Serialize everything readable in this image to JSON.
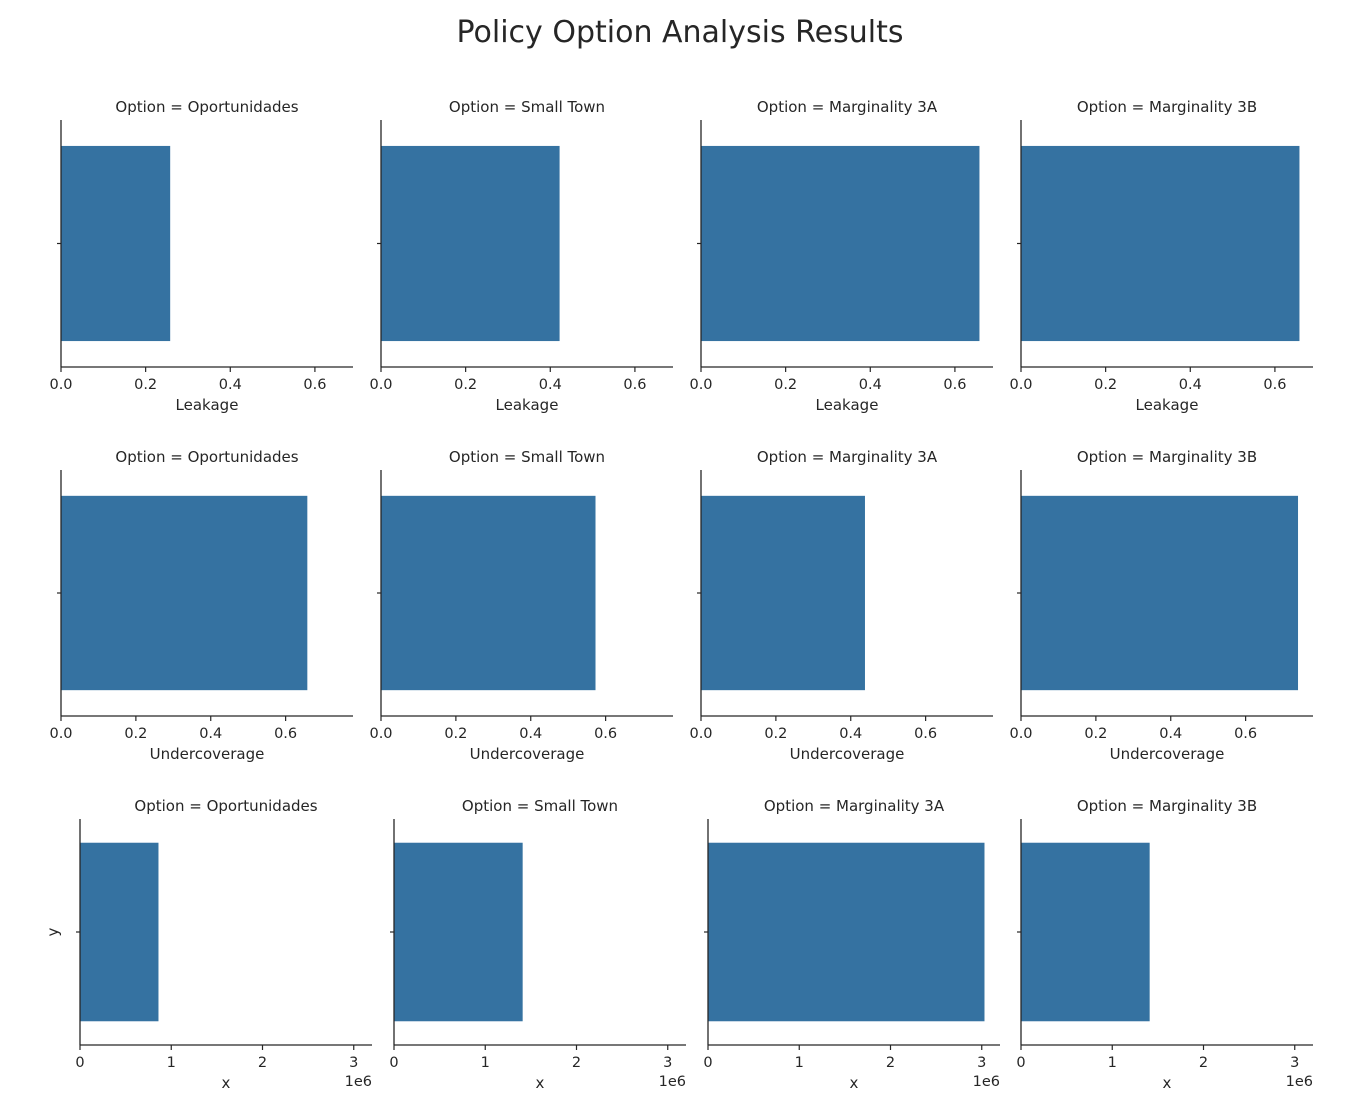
{
  "title": "Policy Option Analysis Results",
  "chart_data": [
    {
      "type": "bar",
      "orientation": "horizontal",
      "title": "Option = Oportunidades",
      "xlabel": "Leakage",
      "ylabel": "",
      "values": [
        0.258
      ],
      "xlim": [
        0,
        0.69
      ],
      "xticks": [
        "0.0",
        "0.2",
        "0.4",
        "0.6"
      ],
      "xtick_values": [
        0,
        0.2,
        0.4,
        0.6
      ],
      "offset_label": "",
      "color": "#3572a1"
    },
    {
      "type": "bar",
      "orientation": "horizontal",
      "title": "Option = Small Town",
      "xlabel": "Leakage",
      "ylabel": "",
      "values": [
        0.422
      ],
      "xlim": [
        0,
        0.69
      ],
      "xticks": [
        "0.0",
        "0.2",
        "0.4",
        "0.6"
      ],
      "xtick_values": [
        0,
        0.2,
        0.4,
        0.6
      ],
      "offset_label": "",
      "color": "#3572a1"
    },
    {
      "type": "bar",
      "orientation": "horizontal",
      "title": "Option = Marginality 3A",
      "xlabel": "Leakage",
      "ylabel": "",
      "values": [
        0.658
      ],
      "xlim": [
        0,
        0.69
      ],
      "xticks": [
        "0.0",
        "0.2",
        "0.4",
        "0.6"
      ],
      "xtick_values": [
        0,
        0.2,
        0.4,
        0.6
      ],
      "offset_label": "",
      "color": "#3572a1"
    },
    {
      "type": "bar",
      "orientation": "horizontal",
      "title": "Option = Marginality 3B",
      "xlabel": "Leakage",
      "ylabel": "",
      "values": [
        0.658
      ],
      "xlim": [
        0,
        0.69
      ],
      "xticks": [
        "0.0",
        "0.2",
        "0.4",
        "0.6"
      ],
      "xtick_values": [
        0,
        0.2,
        0.4,
        0.6
      ],
      "offset_label": "",
      "color": "#3572a1"
    },
    {
      "type": "bar",
      "orientation": "horizontal",
      "title": "Option = Oportunidades",
      "xlabel": "Undercoverage",
      "ylabel": "",
      "values": [
        0.658
      ],
      "xlim": [
        0,
        0.78
      ],
      "xticks": [
        "0.0",
        "0.2",
        "0.4",
        "0.6"
      ],
      "xtick_values": [
        0,
        0.2,
        0.4,
        0.6
      ],
      "offset_label": "",
      "color": "#3572a1"
    },
    {
      "type": "bar",
      "orientation": "horizontal",
      "title": "Option = Small Town",
      "xlabel": "Undercoverage",
      "ylabel": "",
      "values": [
        0.573
      ],
      "xlim": [
        0,
        0.78
      ],
      "xticks": [
        "0.0",
        "0.2",
        "0.4",
        "0.6"
      ],
      "xtick_values": [
        0,
        0.2,
        0.4,
        0.6
      ],
      "offset_label": "",
      "color": "#3572a1"
    },
    {
      "type": "bar",
      "orientation": "horizontal",
      "title": "Option = Marginality 3A",
      "xlabel": "Undercoverage",
      "ylabel": "",
      "values": [
        0.438
      ],
      "xlim": [
        0,
        0.78
      ],
      "xticks": [
        "0.0",
        "0.2",
        "0.4",
        "0.6"
      ],
      "xtick_values": [
        0,
        0.2,
        0.4,
        0.6
      ],
      "offset_label": "",
      "color": "#3572a1"
    },
    {
      "type": "bar",
      "orientation": "horizontal",
      "title": "Option = Marginality 3B",
      "xlabel": "Undercoverage",
      "ylabel": "",
      "values": [
        0.74
      ],
      "xlim": [
        0,
        0.78
      ],
      "xticks": [
        "0.0",
        "0.2",
        "0.4",
        "0.6"
      ],
      "xtick_values": [
        0,
        0.2,
        0.4,
        0.6
      ],
      "offset_label": "",
      "color": "#3572a1"
    },
    {
      "type": "bar",
      "orientation": "horizontal",
      "title": "Option = Oportunidades",
      "xlabel": "x",
      "ylabel": "y",
      "values": [
        860000
      ],
      "xlim": [
        0,
        3200000
      ],
      "xticks": [
        "0",
        "1",
        "2",
        "3"
      ],
      "xtick_values": [
        0,
        1000000,
        2000000,
        3000000
      ],
      "offset_label": "1e6",
      "color": "#3572a1"
    },
    {
      "type": "bar",
      "orientation": "horizontal",
      "title": "Option = Small Town",
      "xlabel": "x",
      "ylabel": "",
      "values": [
        1410000
      ],
      "xlim": [
        0,
        3200000
      ],
      "xticks": [
        "0",
        "1",
        "2",
        "3"
      ],
      "xtick_values": [
        0,
        1000000,
        2000000,
        3000000
      ],
      "offset_label": "1e6",
      "color": "#3572a1"
    },
    {
      "type": "bar",
      "orientation": "horizontal",
      "title": "Option = Marginality 3A",
      "xlabel": "x",
      "ylabel": "",
      "values": [
        3030000
      ],
      "xlim": [
        0,
        3200000
      ],
      "xticks": [
        "0",
        "1",
        "2",
        "3"
      ],
      "xtick_values": [
        0,
        1000000,
        2000000,
        3000000
      ],
      "offset_label": "1e6",
      "color": "#3572a1"
    },
    {
      "type": "bar",
      "orientation": "horizontal",
      "title": "Option = Marginality 3B",
      "xlabel": "x",
      "ylabel": "",
      "values": [
        1410000
      ],
      "xlim": [
        0,
        3200000
      ],
      "xticks": [
        "0",
        "1",
        "2",
        "3"
      ],
      "xtick_values": [
        0,
        1000000,
        2000000,
        3000000
      ],
      "offset_label": "1e6",
      "color": "#3572a1"
    }
  ]
}
